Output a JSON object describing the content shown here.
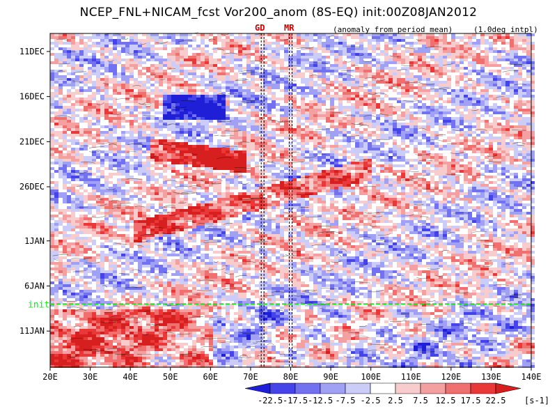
{
  "chart_data": {
    "type": "heatmap",
    "title": "NCEP_FNL+NICAM_fcst Vor200_anom (8S-EQ) init:00Z08JAN2012",
    "subtitle": "(anomaly from period mean)",
    "note": "(1.0deg intpl)",
    "x_ticks": [
      "20E",
      "30E",
      "40E",
      "50E",
      "60E",
      "70E",
      "80E",
      "90E",
      "100E",
      "110E",
      "120E",
      "130E",
      "140E"
    ],
    "xlim": [
      20,
      140
    ],
    "y_ticks": [
      "11DEC",
      "16DEC",
      "21DEC",
      "26DEC",
      "1JAN",
      "6JAN",
      "11JAN"
    ],
    "ylim": [
      "09DEC2011",
      "15JAN2012"
    ],
    "markers": [
      {
        "label": "GD",
        "lon": 73,
        "color": "#cc0000"
      },
      {
        "label": "MR",
        "lon": 80,
        "color": "#cc0000"
      }
    ],
    "init_line": {
      "label": "init",
      "date": "08JAN2012",
      "color": "#22dd22"
    },
    "colorbar": {
      "levels": [
        "-22.5",
        "-17.5",
        "-12.5",
        "-7.5",
        "-2.5",
        "2.5",
        "7.5",
        "12.5",
        "17.5",
        "22.5"
      ],
      "units": "[s-1]",
      "colors": [
        "#1f1fd8",
        "#4444e8",
        "#7272f0",
        "#a0a0f4",
        "#ccccf8",
        "#ffffff",
        "#f8cccc",
        "#f4a0a0",
        "#f07070",
        "#e83838",
        "#d81f1f"
      ]
    },
    "pattern": "alternating red (positive) and blue (negative) vorticity anomaly streaks propagating eastward with time; strong red bands near 50-60E around 21DEC and 40-80E around 1JAN; mixed forecast field after init"
  }
}
